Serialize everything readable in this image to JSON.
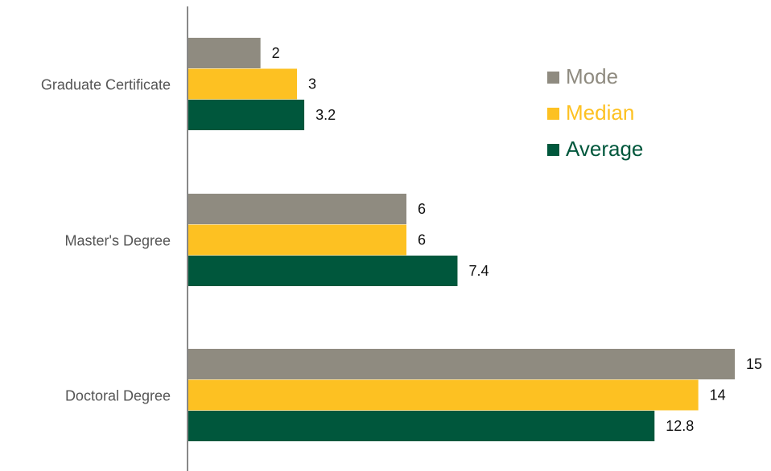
{
  "chart_data": {
    "type": "bar",
    "orientation": "horizontal",
    "categories": [
      "Graduate Certificate",
      "Master's Degree",
      "Doctoral Degree"
    ],
    "series": [
      {
        "name": "Mode",
        "color": "#8f8b80",
        "values": [
          2,
          6,
          15
        ]
      },
      {
        "name": "Median",
        "color": "#fdc122",
        "values": [
          3,
          6,
          14
        ]
      },
      {
        "name": "Average",
        "color": "#00573c",
        "values": [
          3.2,
          7.4,
          12.8
        ]
      }
    ],
    "legend": "upper right"
  }
}
